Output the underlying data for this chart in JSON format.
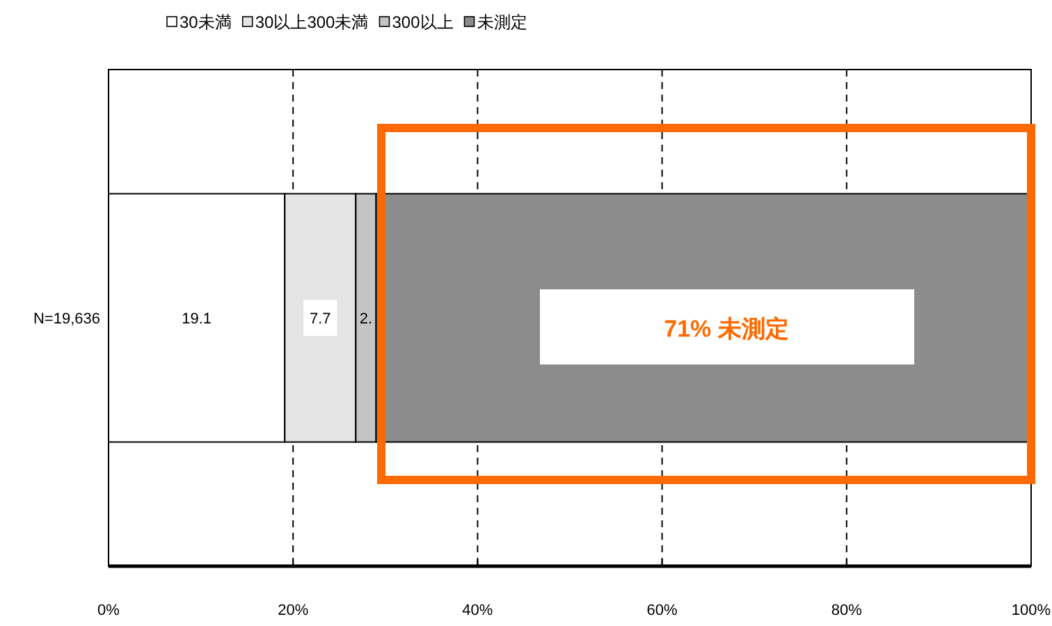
{
  "chart_data": {
    "type": "bar",
    "orientation": "horizontal",
    "stacked": true,
    "categories": [
      "N=19,636"
    ],
    "series": [
      {
        "name": "30未満",
        "color": "#ffffff",
        "values": [
          19.1
        ],
        "value_labels": [
          "19.1"
        ]
      },
      {
        "name": "30以上300未満",
        "color": "#e4e4e4",
        "values": [
          7.7
        ],
        "value_labels": [
          "7.7"
        ]
      },
      {
        "name": "300以上",
        "color": "#c4c4c4",
        "values": [
          2.2
        ],
        "value_labels": [
          "2."
        ]
      },
      {
        "name": "未測定",
        "color": "#8c8c8c",
        "values": [
          71.0
        ]
      }
    ],
    "xlim": [
      0,
      100
    ],
    "xticks": [
      {
        "value": 0,
        "label": "0%"
      },
      {
        "value": 20,
        "label": "20%"
      },
      {
        "value": 40,
        "label": "40%"
      },
      {
        "value": 60,
        "label": "60%"
      },
      {
        "value": 80,
        "label": "80%"
      },
      {
        "value": 100,
        "label": "100%"
      }
    ],
    "grid": "x",
    "legend": "top left",
    "annotations": [
      "71% 未測定"
    ]
  }
}
